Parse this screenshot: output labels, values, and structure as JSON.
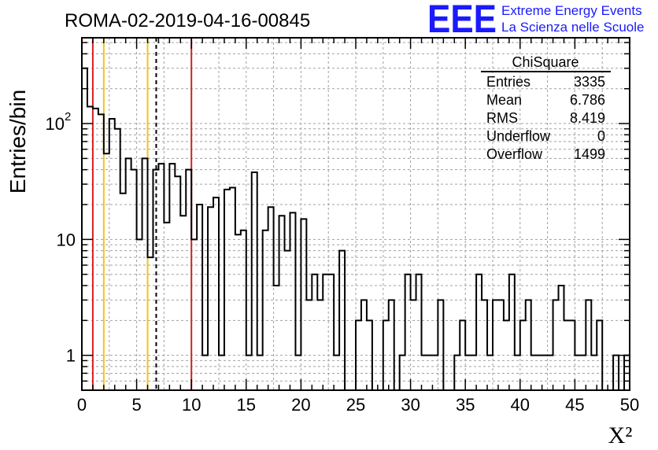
{
  "chart_data": {
    "type": "histogram",
    "title": "ROMA-02-2019-04-16-00845",
    "xlabel": "X²",
    "ylabel": "Entries/bin",
    "xlim": [
      0,
      50
    ],
    "ylim": [
      0.5,
      550
    ],
    "yscale": "log",
    "grid": true,
    "bin_width": 0.5,
    "bin_start": 0,
    "values": [
      300,
      140,
      135,
      120,
      55,
      110,
      90,
      25,
      50,
      40,
      10,
      50,
      7,
      40,
      45,
      14,
      45,
      35,
      16,
      40,
      10,
      20,
      1,
      19,
      23,
      1,
      27,
      28,
      11,
      12,
      1,
      38,
      1,
      12,
      19,
      4,
      16,
      8,
      17,
      1,
      15,
      3,
      5,
      3,
      5,
      5,
      1,
      8,
      0,
      0,
      2,
      3,
      2,
      0,
      0,
      2,
      3,
      0,
      1,
      5,
      3,
      5,
      1,
      1,
      1,
      3,
      0,
      0,
      1,
      2,
      1,
      1,
      5,
      3,
      1,
      3,
      3,
      2,
      5,
      1,
      2,
      3,
      1,
      1,
      1,
      1,
      3,
      4,
      2,
      2,
      1,
      1,
      3,
      1,
      2,
      0,
      0,
      1,
      0,
      1
    ],
    "x_ticks": [
      "0",
      "5",
      "10",
      "15",
      "20",
      "25",
      "30",
      "35",
      "40",
      "45",
      "50"
    ],
    "y_ticks": [
      {
        "value": 1,
        "label": "1"
      },
      {
        "value": 10,
        "label": "10"
      },
      {
        "value": 100,
        "label": "10",
        "exp": "2"
      }
    ],
    "vlines": [
      {
        "x": 1,
        "color": "#d42020",
        "style": "solid"
      },
      {
        "x": 2,
        "color": "#f2c418",
        "style": "solid"
      },
      {
        "x": 6,
        "color": "#f2c418",
        "style": "solid"
      },
      {
        "x": 6.786,
        "color": "#000000",
        "style": "dashed"
      },
      {
        "x": 10,
        "color": "#d42020",
        "style": "solid"
      }
    ]
  },
  "stats": {
    "name": "ChiSquare",
    "rows": [
      {
        "label": "Entries",
        "value": "3335"
      },
      {
        "label": "Mean",
        "value": "6.786"
      },
      {
        "label": "RMS",
        "value": "8.419"
      },
      {
        "label": "Underflow",
        "value": "0"
      },
      {
        "label": "Overflow",
        "value": "1499"
      }
    ]
  },
  "logo": {
    "big": "EEE",
    "line1": "Extreme Energy Events",
    "line2": "La Scienza nelle Scuole",
    "color": "#1a1aff"
  }
}
